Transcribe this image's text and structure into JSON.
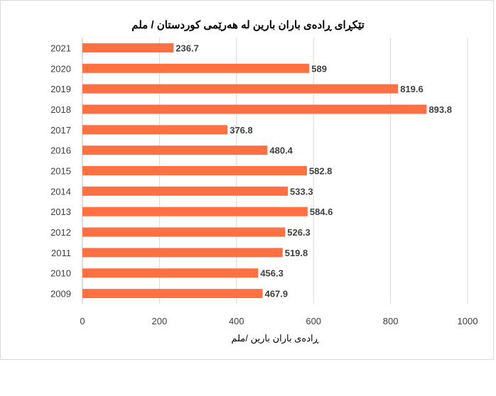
{
  "chart_data": {
    "type": "bar",
    "orientation": "horizontal",
    "title": "تێکڕای ڕادەی باران بارین لە هەرێمی کوردستان / ملم",
    "xlabel": "ڕادەی باران بارین /ملم",
    "ylabel": "",
    "categories": [
      "2021",
      "2020",
      "2019",
      "2018",
      "2017",
      "2016",
      "2015",
      "2014",
      "2013",
      "2012",
      "2011",
      "2010",
      "2009"
    ],
    "values": [
      236.7,
      589,
      819.6,
      893.8,
      376.8,
      480.4,
      582.8,
      533.3,
      584.6,
      526.3,
      519.8,
      456.3,
      467.9
    ],
    "value_labels": [
      "236.7",
      "589",
      "819.6",
      "893.8",
      "376.8",
      "480.4",
      "582.8",
      "533.3",
      "584.6",
      "526.3",
      "519.8",
      "456.3",
      "467.9"
    ],
    "xlim": [
      0,
      1000
    ],
    "xticks": [
      "0",
      "200",
      "400",
      "600",
      "800",
      "1000"
    ],
    "grid": true,
    "bar_color": "#ff7043"
  }
}
